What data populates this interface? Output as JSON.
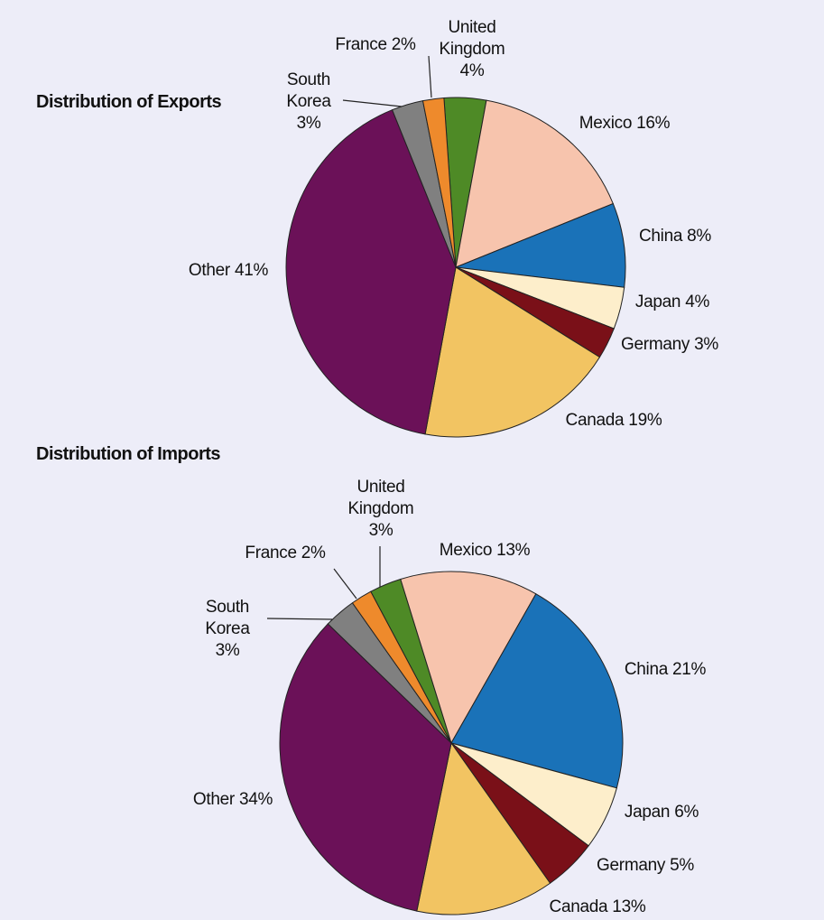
{
  "chart_data": [
    {
      "type": "pie",
      "title": "Distribution of Exports",
      "categories": [
        "United Kingdom",
        "Mexico",
        "China",
        "Japan",
        "Germany",
        "Canada",
        "Other",
        "South Korea",
        "France"
      ],
      "values": [
        4,
        16,
        8,
        4,
        3,
        19,
        41,
        3,
        2
      ],
      "value_labels": [
        "4%",
        "16%",
        "8%",
        "4%",
        "3%",
        "19%",
        "41%",
        "3%",
        "2%"
      ],
      "colors": [
        "#4e8a26",
        "#f7c4ad",
        "#1a72b8",
        "#fdeecb",
        "#7a1018",
        "#f2c462",
        "#6b1158",
        "#808080",
        "#ee8a2c"
      ]
    },
    {
      "type": "pie",
      "title": "Distribution of Imports",
      "categories": [
        "United Kingdom",
        "Mexico",
        "China",
        "Japan",
        "Germany",
        "Canada",
        "Other",
        "South Korea",
        "France"
      ],
      "values": [
        3,
        13,
        21,
        6,
        5,
        13,
        34,
        3,
        2
      ],
      "value_labels": [
        "3%",
        "13%",
        "21%",
        "6%",
        "5%",
        "13%",
        "34%",
        "3%",
        "2%"
      ],
      "colors": [
        "#4e8a26",
        "#f7c4ad",
        "#1a72b8",
        "#fdeecb",
        "#7a1018",
        "#f2c462",
        "#6b1158",
        "#808080",
        "#ee8a2c"
      ]
    }
  ]
}
